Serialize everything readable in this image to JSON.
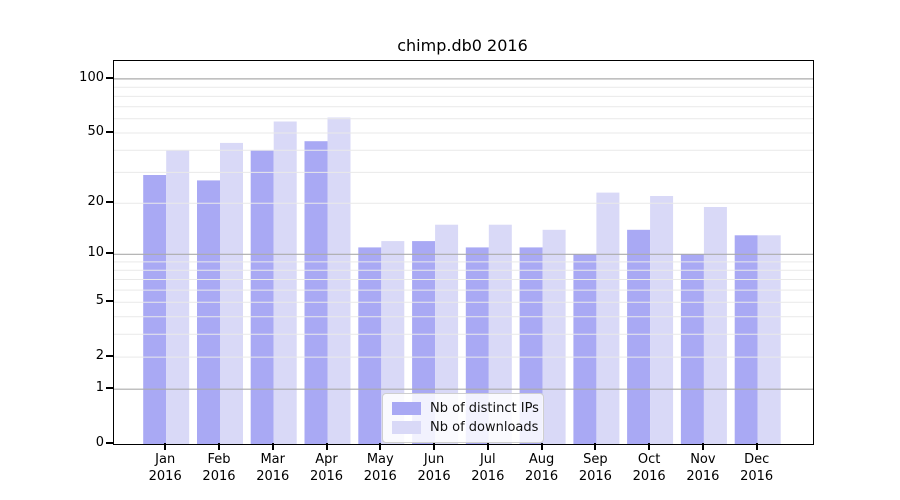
{
  "chart_data": {
    "type": "bar",
    "title": "chimp.db0 2016",
    "categories": [
      "Jan",
      "Feb",
      "Mar",
      "Apr",
      "May",
      "Jun",
      "Jul",
      "Aug",
      "Sep",
      "Oct",
      "Nov",
      "Dec"
    ],
    "year": "2016",
    "series": [
      {
        "name": "Nb of distinct IPs",
        "color": "#a9a9f4",
        "values": [
          29,
          27,
          40,
          45,
          11,
          12,
          11,
          11,
          10,
          14,
          10,
          13
        ]
      },
      {
        "name": "Nb of downloads",
        "color": "#d9d9f7",
        "values": [
          40,
          44,
          58,
          61,
          12,
          15,
          15,
          14,
          23,
          22,
          19,
          13
        ]
      }
    ],
    "y_axis": {
      "scale": "log1p",
      "ticks": [
        0,
        1,
        2,
        5,
        10,
        20,
        50,
        100
      ],
      "ylim": [
        0,
        126
      ]
    },
    "gridlines": {
      "major": [
        1,
        10,
        100
      ],
      "minor": [
        2,
        3,
        4,
        5,
        6,
        7,
        8,
        9,
        20,
        30,
        40,
        50,
        60,
        70,
        80,
        90
      ],
      "major_color": "#ababab",
      "minor_color": "#e9e9e9"
    },
    "legend": {
      "position": "lower center"
    },
    "grid_on": true
  }
}
